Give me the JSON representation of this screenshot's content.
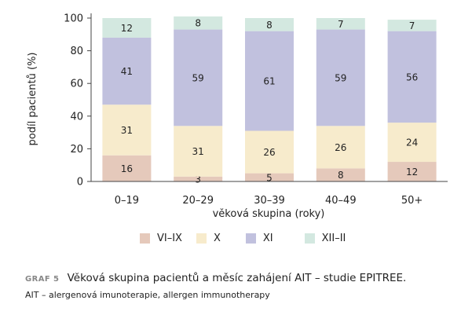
{
  "chart_data": {
    "type": "bar",
    "stacked": true,
    "categories": [
      "0–19",
      "20–29",
      "30–39",
      "40–49",
      "50+"
    ],
    "series": [
      {
        "name": "VI–IX",
        "values": [
          16,
          3,
          5,
          8,
          12
        ],
        "color": "#e5c9bb"
      },
      {
        "name": "X",
        "values": [
          31,
          31,
          26,
          26,
          24
        ],
        "color": "#f7ebcc"
      },
      {
        "name": "XI",
        "values": [
          41,
          59,
          61,
          59,
          56
        ],
        "color": "#c1c1de"
      },
      {
        "name": "XII–II",
        "values": [
          12,
          8,
          8,
          7,
          7
        ],
        "color": "#d3e8e0"
      }
    ],
    "xlabel": "věková skupina (roky)",
    "ylabel": "podíl pacientů (%)",
    "ylim": [
      0,
      100
    ],
    "yticks": [
      0,
      20,
      40,
      60,
      80,
      100
    ],
    "grid": false,
    "legend_position": "bottom"
  },
  "caption": {
    "tag": "GRAF 5",
    "title": "Věková skupina pacientů a měsíc zahájení AIT – studie EPITREE.",
    "note": "AIT – alergenová imunoterapie, allergen immunotherapy"
  }
}
